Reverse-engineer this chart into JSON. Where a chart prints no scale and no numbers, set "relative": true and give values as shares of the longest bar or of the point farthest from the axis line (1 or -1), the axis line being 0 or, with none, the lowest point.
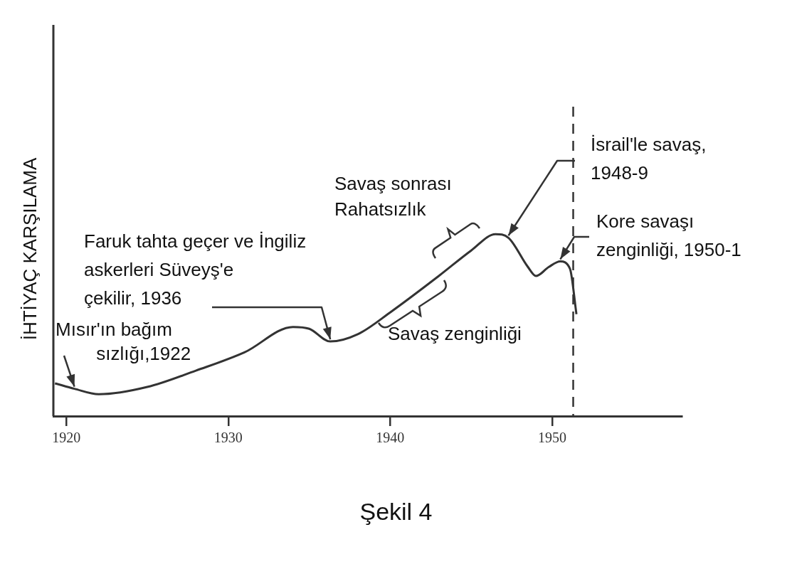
{
  "chart_data": {
    "type": "line",
    "relative": true,
    "ylabel": "İHTİYAÇ KARŞILAMA",
    "x": [
      1919.3,
      1920.5,
      1922,
      1925,
      1928,
      1931,
      1934,
      1935,
      1936.3,
      1938,
      1940,
      1943,
      1945,
      1946.5,
      1947.3,
      1948.5,
      1949,
      1949.8,
      1950.5,
      1951.1,
      1951.5
    ],
    "values": [
      0.18,
      0.15,
      0.12,
      0.16,
      0.25,
      0.35,
      0.49,
      0.48,
      0.41,
      0.45,
      0.57,
      0.77,
      0.91,
      1,
      0.98,
      0.82,
      0.77,
      0.82,
      0.85,
      0.81,
      0.56
    ],
    "color": "#333333",
    "marker": "none",
    "line_style": "solid",
    "grid": false,
    "legend": false,
    "xlim": [
      1919.2,
      1958
    ],
    "xticks": [
      1920,
      1930,
      1940,
      1950
    ],
    "ref_lines": [
      {
        "axis": "x",
        "value": 1951.3,
        "line_style": "dashed",
        "color": "#333333"
      }
    ],
    "annotations": [
      {
        "text": "Mısır'ın bağım\n sızlığı,1922",
        "x": 1920.5,
        "y": 0.15
      },
      {
        "text": "Faruk tahta geçer ve İngiliz\naskerleri Süveyş'e\nçekilir, 1936",
        "x": 1936.3,
        "y": 0.41
      },
      {
        "text": "İsrail'le savaş,\n1948-9",
        "x": 1947.3,
        "y": 0.98
      },
      {
        "text": "Kore savaşı\nzenginliği, 1950-1",
        "x": 1950.5,
        "y": 0.85
      },
      "Savaş sonrası\nRahatsızlık",
      "Savaş zenginliği",
      "Şekil 4"
    ]
  }
}
